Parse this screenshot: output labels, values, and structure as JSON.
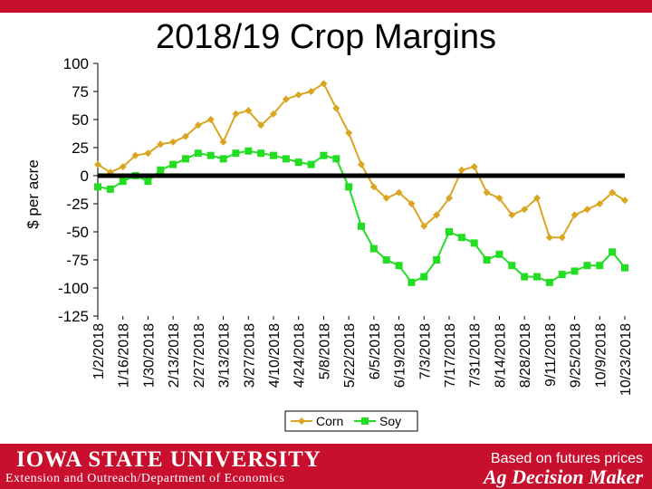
{
  "header": {
    "title": "2018/19 Crop Margins"
  },
  "footer": {
    "university": "IOWA STATE UNIVERSITY",
    "department": "Extension and Outreach/Department of Economics",
    "note": "Based on futures prices",
    "brand": "Ag Decision Maker"
  },
  "colors": {
    "corn": "#daa520",
    "soy": "#22dd22",
    "zero_line": "#000000",
    "brand_red": "#c8102e"
  },
  "chart_data": {
    "type": "line",
    "title": "2018/19 Crop Margins",
    "xlabel": "",
    "ylabel": "$ per acre",
    "ylim": [
      -125,
      100
    ],
    "yticks": [
      100,
      75,
      50,
      25,
      0,
      -25,
      -50,
      -75,
      -100,
      -125
    ],
    "grid": false,
    "legend": "bottom",
    "xtick_labels": [
      "1/2/2018",
      "1/16/2018",
      "1/30/2018",
      "2/13/2018",
      "2/27/2018",
      "3/13/2018",
      "3/27/2018",
      "4/10/2018",
      "4/24/2018",
      "5/8/2018",
      "5/22/2018",
      "6/5/2018",
      "6/19/2018",
      "7/3/2018",
      "7/17/2018",
      "7/31/2018",
      "8/14/2018",
      "8/28/2018",
      "9/11/2018",
      "9/25/2018",
      "10/9/2018",
      "10/23/2018"
    ],
    "x": [
      "1/2/2018",
      "1/9/2018",
      "1/16/2018",
      "1/23/2018",
      "1/30/2018",
      "2/6/2018",
      "2/13/2018",
      "2/20/2018",
      "2/27/2018",
      "3/6/2018",
      "3/13/2018",
      "3/20/2018",
      "3/27/2018",
      "4/3/2018",
      "4/10/2018",
      "4/17/2018",
      "4/24/2018",
      "5/1/2018",
      "5/8/2018",
      "5/15/2018",
      "5/22/2018",
      "5/29/2018",
      "6/5/2018",
      "6/12/2018",
      "6/19/2018",
      "6/26/2018",
      "7/3/2018",
      "7/10/2018",
      "7/17/2018",
      "7/24/2018",
      "7/31/2018",
      "8/7/2018",
      "8/14/2018",
      "8/21/2018",
      "8/28/2018",
      "9/4/2018",
      "9/11/2018",
      "9/18/2018",
      "9/25/2018",
      "10/2/2018",
      "10/9/2018",
      "10/16/2018",
      "10/23/2018"
    ],
    "series": [
      {
        "name": "Corn",
        "color": "#daa520",
        "marker": "diamond",
        "values": [
          10,
          3,
          8,
          18,
          20,
          28,
          30,
          35,
          45,
          50,
          30,
          55,
          58,
          45,
          55,
          68,
          72,
          75,
          82,
          60,
          38,
          10,
          -10,
          -20,
          -15,
          -25,
          -45,
          -35,
          -20,
          5,
          8,
          -15,
          -20,
          -35,
          -30,
          -20,
          -55,
          -55,
          -35,
          -30,
          -25,
          -15,
          -22
        ]
      },
      {
        "name": "Soy",
        "color": "#22dd22",
        "marker": "square",
        "values": [
          -10,
          -12,
          -5,
          0,
          -5,
          5,
          10,
          15,
          20,
          18,
          15,
          20,
          22,
          20,
          18,
          15,
          12,
          10,
          18,
          15,
          -10,
          -45,
          -65,
          -75,
          -80,
          -95,
          -90,
          -75,
          -50,
          -55,
          -60,
          -75,
          -70,
          -80,
          -90,
          -90,
          -95,
          -88,
          -85,
          -80,
          -80,
          -68,
          -82
        ]
      }
    ]
  }
}
